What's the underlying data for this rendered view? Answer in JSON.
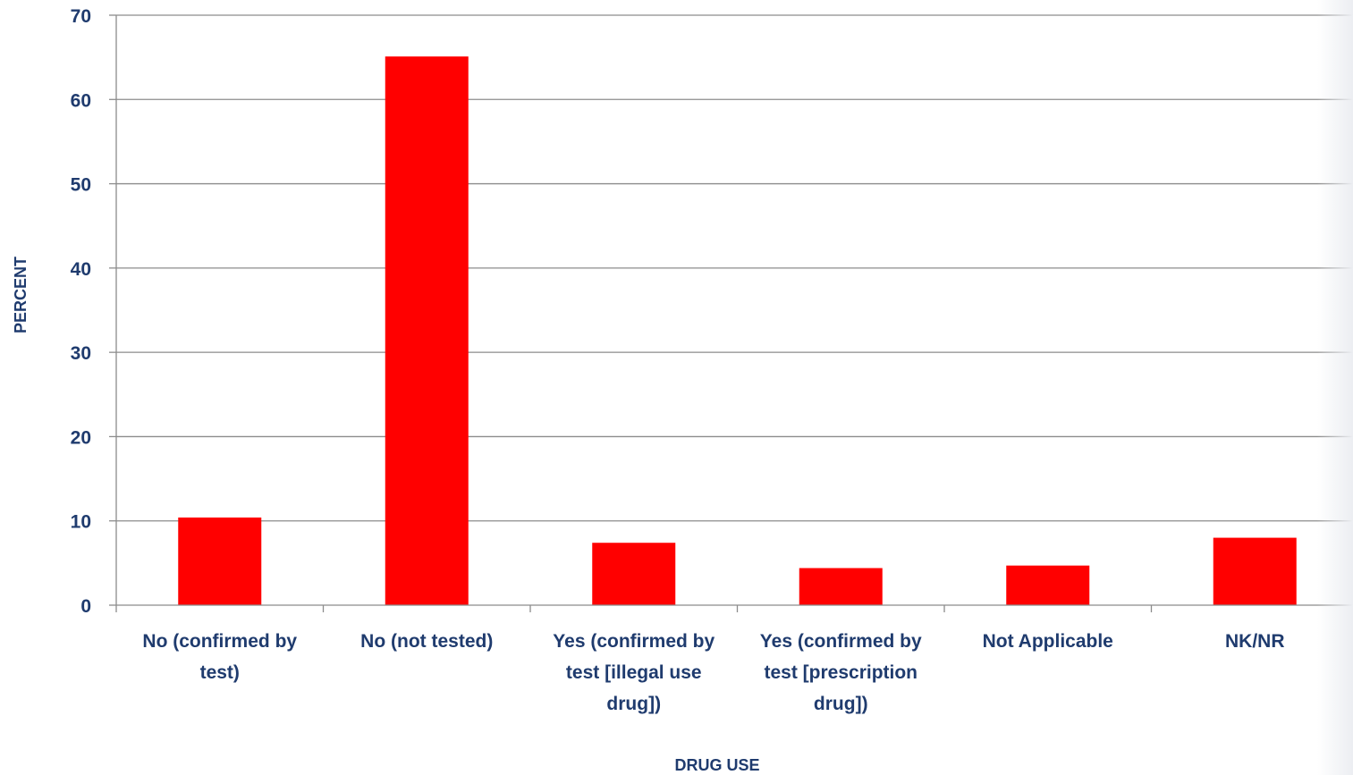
{
  "chart_data": {
    "type": "bar",
    "categories": [
      "No (confirmed by test)",
      "No (not tested)",
      "Yes (confirmed by test [illegal use drug])",
      "Yes (confirmed by test [prescription drug])",
      "Not Applicable",
      "NK/NR"
    ],
    "category_lines": [
      [
        "No (confirmed by",
        "test)"
      ],
      [
        "No (not tested)"
      ],
      [
        "Yes (confirmed by",
        "test [illegal use",
        "drug])"
      ],
      [
        "Yes (confirmed by",
        "test [prescription",
        "drug])"
      ],
      [
        "Not Applicable"
      ],
      [
        "NK/NR"
      ]
    ],
    "values": [
      10.4,
      65.1,
      7.4,
      4.4,
      4.7,
      8.0
    ],
    "ylim": [
      0,
      70
    ],
    "yticks": [
      0,
      10,
      20,
      30,
      40,
      50,
      60,
      70
    ],
    "xlabel": "DRUG USE",
    "ylabel": "PERCENT",
    "grid": true,
    "bar_color": "#ff0000",
    "axis_text_color": "#1f3b6e"
  }
}
